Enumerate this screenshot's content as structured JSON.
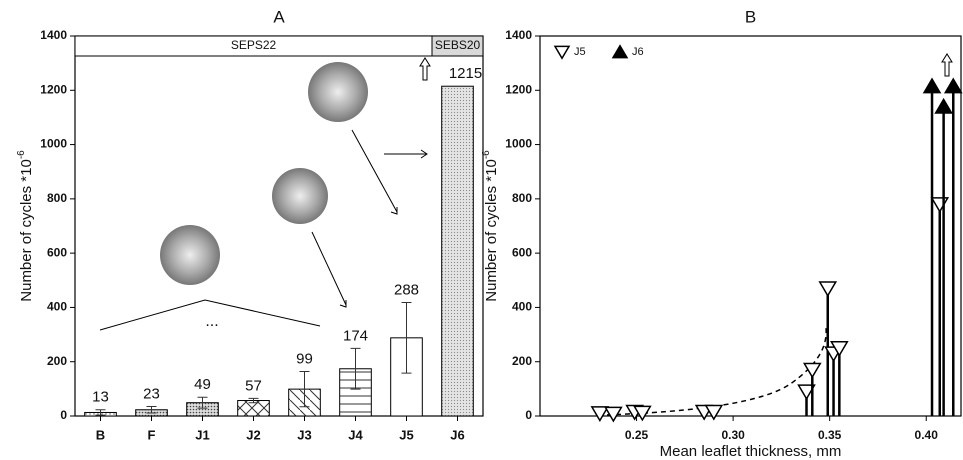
{
  "chart_data": [
    {
      "type": "bar",
      "title": "A",
      "y_label": "Number of cycles *10",
      "y_label_superscript": "-6",
      "categories": [
        "B",
        "F",
        "J1",
        "J2",
        "J3",
        "J4",
        "J5",
        "J6"
      ],
      "values": [
        13,
        23,
        49,
        57,
        99,
        174,
        288,
        1215
      ],
      "errors": [
        10,
        12,
        20,
        8,
        65,
        75,
        130,
        null
      ],
      "hatches": [
        "dots",
        "dense-dots",
        "dense-dots",
        "crosshatch",
        "diagonal",
        "horizontal",
        "blank",
        "gray-dots"
      ],
      "groups": [
        {
          "name": "SEPS22",
          "categories": [
            "B",
            "F",
            "J1",
            "J2",
            "J3",
            "J4",
            "J5"
          ],
          "color": "#ffffff"
        },
        {
          "name": "SEBS20",
          "categories": [
            "J6"
          ],
          "color": "#d9d9d9"
        }
      ],
      "annotation": "...",
      "ylim": [
        0,
        1400
      ],
      "yticks": [
        0,
        200,
        400,
        600,
        800,
        1000,
        1200,
        1400
      ]
    },
    {
      "type": "scatter",
      "title": "B",
      "x_label": "Mean leaflet thickness, mm",
      "y_label": "Number of cycles *10",
      "y_label_superscript": "-6",
      "series": [
        {
          "name": "J5",
          "marker": "triangle-down",
          "filled": false,
          "color": "#000000",
          "x": [
            0.231,
            0.238,
            0.249,
            0.253,
            0.285,
            0.29,
            0.338,
            0.341,
            0.349,
            0.352,
            0.355,
            0.407
          ],
          "values": [
            10,
            8,
            15,
            12,
            15,
            15,
            90,
            170,
            470,
            230,
            250,
            780
          ]
        },
        {
          "name": "J6",
          "marker": "triangle-up",
          "filled": true,
          "color": "#000000",
          "x": [
            0.403,
            0.409,
            0.414
          ],
          "values": [
            1215,
            1140,
            1215
          ]
        }
      ],
      "drop_lines": true,
      "xlim": [
        0.2,
        0.418
      ],
      "xticks": [
        0.25,
        {
          "value": 0.3,
          "label": "0.30"
        },
        0.35,
        {
          "value": 0.4,
          "label": "0.40"
        }
      ],
      "ylim": [
        0,
        1400
      ],
      "yticks": [
        0,
        200,
        400,
        600,
        800,
        1000,
        1200,
        1400
      ]
    }
  ]
}
